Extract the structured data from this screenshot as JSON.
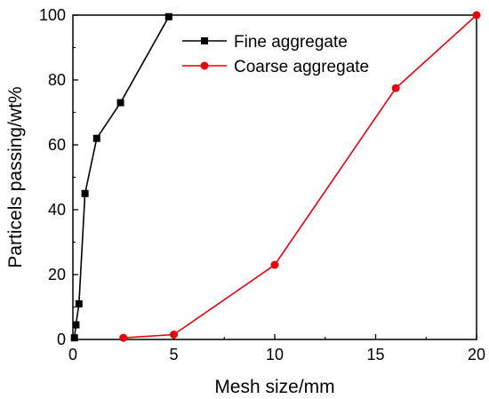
{
  "chart_data": {
    "type": "line",
    "xlabel": "Mesh size/mm",
    "ylabel": "Particels passing/wt%",
    "xlim": [
      0,
      20
    ],
    "ylim": [
      0,
      100
    ],
    "xticks": [
      0,
      5,
      10,
      15,
      20
    ],
    "yticks": [
      0,
      20,
      40,
      60,
      80,
      100
    ],
    "x_tick_labels": [
      "0",
      "5",
      "10",
      "15",
      "20"
    ],
    "y_tick_labels": [
      "0",
      "20",
      "40",
      "60",
      "80",
      "100"
    ],
    "grid": false,
    "legend_position": "top-right",
    "series": [
      {
        "name": "Fine aggregate",
        "color": "#000000",
        "marker": "square",
        "points": [
          {
            "x": 0.075,
            "y": 0.5
          },
          {
            "x": 0.15,
            "y": 4.5
          },
          {
            "x": 0.3,
            "y": 11
          },
          {
            "x": 0.6,
            "y": 45
          },
          {
            "x": 1.18,
            "y": 62
          },
          {
            "x": 2.36,
            "y": 73
          },
          {
            "x": 4.75,
            "y": 99.5
          }
        ]
      },
      {
        "name": "Coarse aggregate",
        "color": "#e8000b",
        "marker": "circle",
        "points": [
          {
            "x": 2.5,
            "y": 0.5
          },
          {
            "x": 5,
            "y": 1.5
          },
          {
            "x": 10,
            "y": 23
          },
          {
            "x": 16,
            "y": 77.5
          },
          {
            "x": 20,
            "y": 100
          }
        ]
      }
    ]
  }
}
